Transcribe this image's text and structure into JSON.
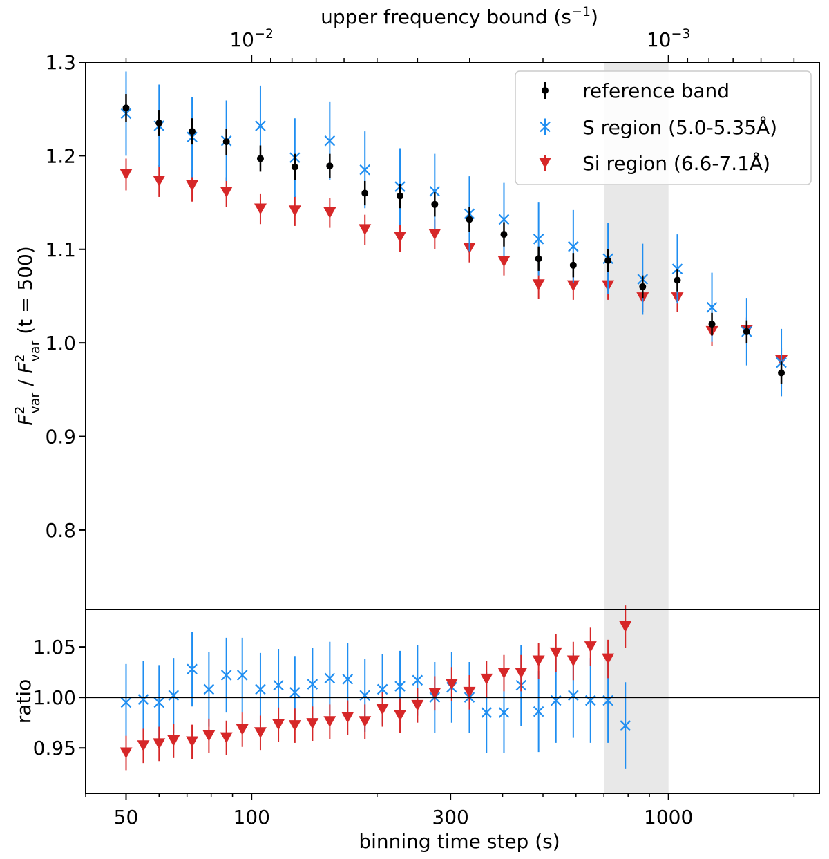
{
  "chart_data": {
    "type": "scatter",
    "x_scale": "log",
    "xlim": [
      40,
      2300
    ],
    "xlabel": "binning time step (s)",
    "x_ticks": [
      {
        "value": 50,
        "label": "50"
      },
      {
        "value": 100,
        "label": "100"
      },
      {
        "value": 300,
        "label": "300"
      },
      {
        "value": 1000,
        "label": "1000"
      }
    ],
    "top_axis": {
      "label_main": "upper frequency bound (s",
      "label_sup": "−1",
      "label_close": ")",
      "ticks": [
        {
          "base": "10",
          "exp": "−2",
          "value": 100
        },
        {
          "base": "10",
          "exp": "−3",
          "value": 1000
        }
      ]
    },
    "shaded_region": [
      700,
      1000
    ],
    "main": {
      "ylim": [
        0.715,
        1.3
      ],
      "ylabel": {
        "f": "F",
        "sup": "2",
        "sub": "var",
        "slash": " / ",
        "suffix": " (t = 500)"
      },
      "y_ticks": [
        {
          "value": 0.8,
          "label": "0.8"
        },
        {
          "value": 0.9,
          "label": "0.9"
        },
        {
          "value": 1.0,
          "label": "1.0"
        },
        {
          "value": 1.1,
          "label": "1.1"
        },
        {
          "value": 1.2,
          "label": "1.2"
        },
        {
          "value": 1.3,
          "label": "1.3"
        }
      ],
      "legend": {
        "position": "top-right",
        "entries": [
          {
            "key": "reference",
            "marker": "dot",
            "label": "reference band"
          },
          {
            "key": "s_region",
            "marker": "x",
            "label": "S region (5.0-5.35Å)"
          },
          {
            "key": "si_region",
            "marker": "triangle",
            "label": "Si region (6.6-7.1Å)"
          }
        ]
      },
      "series": [
        {
          "name": "reference band",
          "key": "reference",
          "color": "#000000",
          "marker": "dot",
          "x": [
            50,
            55,
            60,
            65,
            72,
            79,
            87,
            95,
            105,
            116,
            127,
            140,
            154,
            170,
            187,
            206,
            227,
            250,
            275,
            302,
            333,
            366,
            403,
            443,
            488,
            537,
            591,
            650,
            716,
            788,
            867,
            954,
            1050,
            1155,
            1271,
            1399,
            1540,
            1695,
            1865,
            2052
          ],
          "y": [
            1.251,
            null,
            1.235,
            null,
            1.226,
            null,
            1.215,
            null,
            1.197,
            null,
            1.188,
            null,
            1.189,
            null,
            1.16,
            null,
            1.157,
            null,
            1.148,
            null,
            1.132,
            null,
            1.116,
            null,
            1.09,
            null,
            1.083,
            null,
            1.088,
            null,
            1.06,
            null,
            1.067,
            null,
            1.02,
            null,
            1.012,
            null,
            0.968,
            null
          ],
          "err": [
            0.015,
            null,
            0.014,
            null,
            0.014,
            null,
            0.014,
            null,
            0.014,
            null,
            0.014,
            null,
            0.013,
            null,
            0.013,
            null,
            0.013,
            null,
            0.013,
            null,
            0.013,
            null,
            0.013,
            null,
            0.013,
            null,
            0.013,
            null,
            0.012,
            null,
            0.012,
            null,
            0.012,
            null,
            0.012,
            null,
            0.012,
            null,
            0.012,
            null
          ]
        },
        {
          "name": "S region (5.0-5.35Å)",
          "key": "s_region",
          "color": "#1f8ef1",
          "marker": "x",
          "x": [
            50,
            55,
            60,
            65,
            72,
            79,
            87,
            95,
            105,
            116,
            127,
            140,
            154,
            170,
            187,
            206,
            227,
            250,
            275,
            302,
            333,
            366,
            403,
            443,
            488,
            537,
            591,
            650,
            716,
            788,
            867,
            954,
            1050,
            1155,
            1271,
            1399,
            1540,
            1695,
            1865,
            2052
          ],
          "y": [
            1.245,
            null,
            1.232,
            null,
            1.22,
            null,
            1.216,
            null,
            1.232,
            null,
            1.198,
            null,
            1.216,
            null,
            1.185,
            null,
            1.167,
            null,
            1.162,
            null,
            1.138,
            null,
            1.132,
            null,
            1.111,
            null,
            1.103,
            null,
            1.09,
            null,
            1.068,
            null,
            1.079,
            null,
            1.038,
            null,
            1.012,
            null,
            0.979,
            null
          ],
          "err": [
            0.045,
            null,
            0.044,
            null,
            0.043,
            null,
            0.043,
            null,
            0.043,
            null,
            0.042,
            null,
            0.042,
            null,
            0.041,
            null,
            0.041,
            null,
            0.04,
            null,
            0.04,
            null,
            0.039,
            null,
            0.039,
            null,
            0.039,
            null,
            0.038,
            null,
            0.038,
            null,
            0.037,
            null,
            0.037,
            null,
            0.036,
            null,
            0.036,
            null
          ]
        },
        {
          "name": "Si region (6.6-7.1Å)",
          "key": "si_region",
          "color": "#d62728",
          "marker": "triangle",
          "x": [
            50,
            55,
            60,
            65,
            72,
            79,
            87,
            95,
            105,
            116,
            127,
            140,
            154,
            170,
            187,
            206,
            227,
            250,
            275,
            302,
            333,
            366,
            403,
            443,
            488,
            537,
            591,
            650,
            716,
            788,
            867,
            954,
            1050,
            1155,
            1271,
            1399,
            1540,
            1695,
            1865,
            2052
          ],
          "y": [
            1.18,
            null,
            1.173,
            null,
            1.168,
            null,
            1.161,
            null,
            1.143,
            null,
            1.141,
            null,
            1.139,
            null,
            1.121,
            null,
            1.113,
            null,
            1.116,
            null,
            1.101,
            null,
            1.087,
            null,
            1.062,
            null,
            1.061,
            null,
            1.061,
            null,
            1.048,
            null,
            1.048,
            null,
            1.012,
            null,
            1.013,
            null,
            0.981,
            null
          ],
          "err": [
            0.017,
            null,
            0.017,
            null,
            0.017,
            null,
            0.016,
            null,
            0.016,
            null,
            0.016,
            null,
            0.016,
            null,
            0.016,
            null,
            0.016,
            null,
            0.016,
            null,
            0.015,
            null,
            0.015,
            null,
            0.015,
            null,
            0.015,
            null,
            0.015,
            null,
            0.015,
            null,
            0.015,
            null,
            0.015,
            null,
            0.014,
            null,
            0.014,
            null
          ]
        }
      ]
    },
    "ratio": {
      "ylabel": "ratio",
      "ylim": [
        0.905,
        1.087
      ],
      "reference_line": 1.0,
      "y_ticks": [
        {
          "value": 0.95,
          "label": "0.95"
        },
        {
          "value": 1.0,
          "label": "1.00"
        },
        {
          "value": 1.05,
          "label": "1.05"
        }
      ],
      "series": [
        {
          "name": "S region ratio",
          "key": "s_region",
          "color": "#1f8ef1",
          "marker": "x",
          "x": [
            50,
            55,
            60,
            65,
            72,
            79,
            87,
            95,
            105,
            116,
            127,
            140,
            154,
            170,
            187,
            206,
            227,
            250,
            275,
            302,
            333,
            366,
            403,
            443,
            488,
            537,
            591,
            650,
            716,
            788,
            867,
            954,
            1050,
            1155,
            1271,
            1399,
            1540,
            1695,
            1865,
            2052
          ],
          "y": [
            0.995,
            0.998,
            0.995,
            1.002,
            1.028,
            1.008,
            1.022,
            1.022,
            1.008,
            1.012,
            1.005,
            1.013,
            1.019,
            1.018,
            1.002,
            1.008,
            1.011,
            1.017,
            1.0,
            1.01,
            1.0,
            0.985,
            0.985,
            1.012,
            0.986,
            0.997,
            1.002,
            0.997,
            0.997,
            0.972,
            null,
            null,
            null,
            null,
            null,
            null,
            null,
            null,
            null,
            null
          ],
          "err": [
            0.038,
            0.038,
            0.037,
            0.037,
            0.037,
            0.037,
            0.037,
            0.037,
            0.036,
            0.036,
            0.036,
            0.036,
            0.036,
            0.036,
            0.036,
            0.035,
            0.035,
            0.035,
            0.035,
            0.035,
            0.035,
            0.04,
            0.04,
            0.04,
            0.04,
            0.042,
            0.042,
            0.042,
            0.042,
            0.043,
            null,
            null,
            null,
            null,
            null,
            null,
            null,
            null,
            null,
            null
          ]
        },
        {
          "name": "Si region ratio",
          "key": "si_region",
          "color": "#d62728",
          "marker": "triangle",
          "x": [
            50,
            55,
            60,
            65,
            72,
            79,
            87,
            95,
            105,
            116,
            127,
            140,
            154,
            170,
            187,
            206,
            227,
            250,
            275,
            302,
            333,
            366,
            403,
            443,
            488,
            537,
            591,
            650,
            716,
            788,
            867,
            954,
            1050,
            1155,
            1271,
            1399,
            1540,
            1695,
            1865,
            2052
          ],
          "y": [
            0.945,
            0.952,
            0.954,
            0.957,
            0.956,
            0.962,
            0.96,
            0.968,
            0.965,
            0.973,
            0.972,
            0.974,
            0.976,
            0.98,
            0.976,
            0.988,
            0.982,
            0.992,
            1.004,
            1.013,
            1.005,
            1.018,
            1.024,
            1.024,
            1.036,
            1.044,
            1.036,
            1.05,
            1.038,
            1.07,
            null,
            null,
            null,
            null,
            null,
            null,
            null,
            null,
            null,
            null
          ],
          "err": [
            0.017,
            0.017,
            0.017,
            0.017,
            0.017,
            0.017,
            0.017,
            0.017,
            0.017,
            0.017,
            0.017,
            0.017,
            0.017,
            0.017,
            0.017,
            0.017,
            0.017,
            0.017,
            0.017,
            0.017,
            0.017,
            0.018,
            0.018,
            0.018,
            0.018,
            0.019,
            0.019,
            0.019,
            0.019,
            0.021,
            null,
            null,
            null,
            null,
            null,
            null,
            null,
            null,
            null,
            null
          ]
        }
      ]
    }
  }
}
